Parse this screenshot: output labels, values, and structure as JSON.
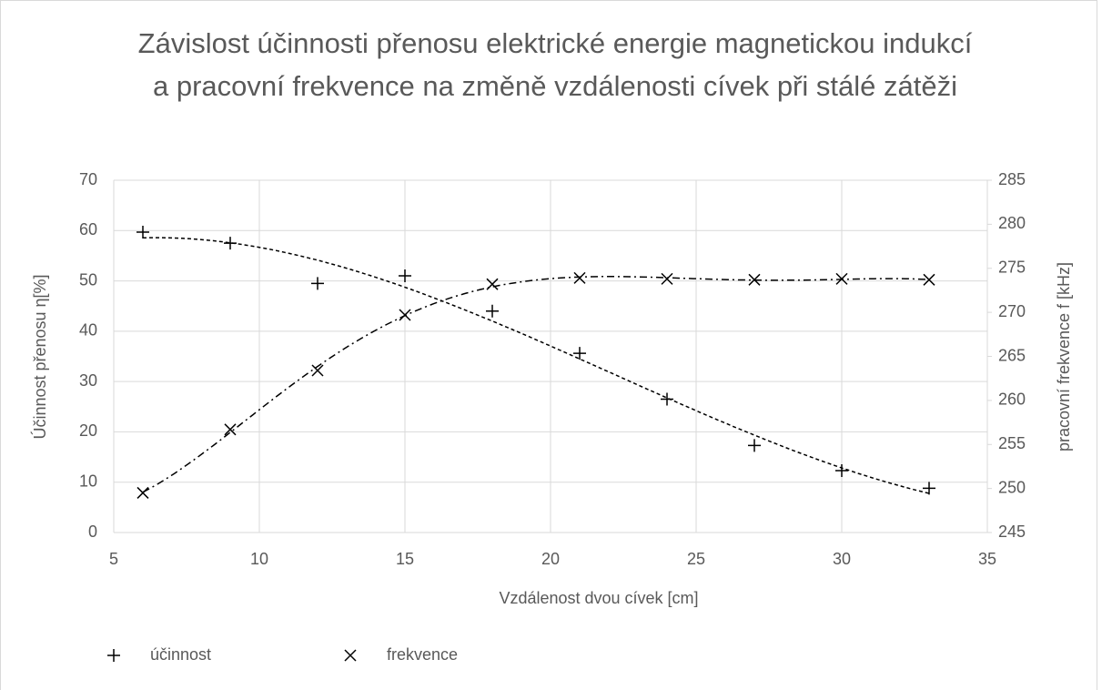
{
  "chart_data": {
    "type": "scatter",
    "title": "Závislost účinnosti přenosu elektrické energie magnetickou indukcí a pracovní frekvence na změně vzdálenosti cívek při stálé zátěži",
    "xlabel": "Vzdálenost dvou cívek [cm]",
    "ylabel": "Účinnost přenosu η[%]",
    "y2label": "pracovní frekvence f [kHz]",
    "x": [
      6,
      9,
      12,
      15,
      18,
      21,
      24,
      27,
      30,
      33
    ],
    "series": [
      {
        "name": "účinnost",
        "color": "#000000",
        "marker": "+",
        "values": [
          59.7,
          57.5,
          49.5,
          51,
          44,
          35.6,
          26.5,
          17.3,
          12.3,
          8.8
        ]
      },
      {
        "name": "frekvence",
        "color": "#000000",
        "marker": "x",
        "axis": "y2",
        "values": [
          249.5,
          256.7,
          263.4,
          269.7,
          273.2,
          273.9,
          273.8,
          273.7,
          273.8,
          273.7
        ]
      }
    ],
    "xlim": [
      5,
      35
    ],
    "xticks": [
      5,
      10,
      15,
      20,
      25,
      30,
      35
    ],
    "ylim": [
      0,
      70
    ],
    "yticks": [
      0,
      10,
      20,
      30,
      40,
      50,
      60,
      70
    ],
    "y2lim": [
      245,
      285
    ],
    "y2ticks": [
      245,
      250,
      255,
      260,
      265,
      270,
      275,
      280,
      285
    ],
    "grid": true,
    "legend": "bottom-left"
  }
}
